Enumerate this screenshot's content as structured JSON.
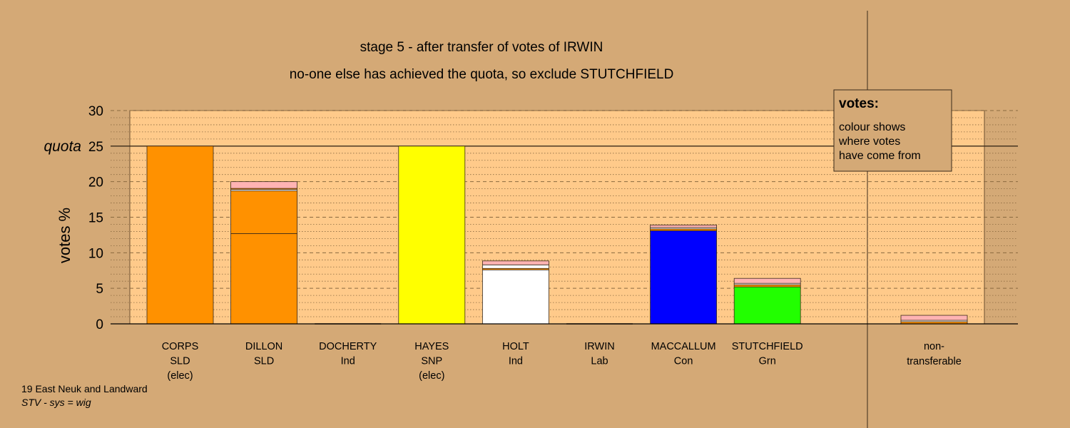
{
  "colors": {
    "background": "#d4a976",
    "plot_panel": "#ffca8a",
    "legend_box": "#d4a976",
    "gridline": "#8a6a40",
    "major_line": "#3a2a1a"
  },
  "footer": {
    "constituency": "19 East Neuk and Landward",
    "system": "STV - sys = wig"
  },
  "legend": {
    "heading": "votes:",
    "lines": [
      "colour shows",
      "where votes",
      "have come from"
    ]
  },
  "chart_data": {
    "type": "bar",
    "stacked": true,
    "title": "stage 5 - after transfer of votes of IRWIN",
    "subtitle": "no-one else has achieved the quota, so exclude STUTCHFIELD",
    "ylabel": "votes %",
    "xlabel": "",
    "ylim": [
      0,
      30
    ],
    "yticks": [
      0,
      5,
      10,
      15,
      20,
      25,
      30
    ],
    "quota": 25,
    "quota_label": "quota",
    "grid": true,
    "legend_position": "top-right",
    "candidates": [
      {
        "name": "CORPS",
        "party": "SLD",
        "status": "(elec)",
        "segments": [
          {
            "value": 25.0,
            "color": "#ff9100"
          }
        ]
      },
      {
        "name": "DILLON",
        "party": "SLD",
        "status": "",
        "segments": [
          {
            "value": 12.7,
            "color": "#ff9100"
          },
          {
            "value": 6.0,
            "color": "#ff9100"
          },
          {
            "value": 0.2,
            "color": "#ffffff"
          },
          {
            "value": 0.15,
            "color": "#ff9100"
          },
          {
            "value": 0.95,
            "color": "#ffb3b3"
          }
        ]
      },
      {
        "name": "DOCHERTY",
        "party": "Ind",
        "status": "",
        "segments": []
      },
      {
        "name": "HAYES",
        "party": "SNP",
        "status": "(elec)",
        "segments": [
          {
            "value": 25.0,
            "color": "#ffff00"
          }
        ]
      },
      {
        "name": "HOLT",
        "party": "Ind",
        "status": "",
        "segments": [
          {
            "value": 7.6,
            "color": "#ffffff"
          },
          {
            "value": 0.2,
            "color": "#ff9100"
          },
          {
            "value": 0.5,
            "color": "#ffffff"
          },
          {
            "value": 0.55,
            "color": "#ffb3b3"
          }
        ]
      },
      {
        "name": "IRWIN",
        "party": "Lab",
        "status": "",
        "segments": []
      },
      {
        "name": "MACCALLUM",
        "party": "Con",
        "status": "",
        "segments": [
          {
            "value": 13.1,
            "color": "#0000ff"
          },
          {
            "value": 0.25,
            "color": "#ff9100"
          },
          {
            "value": 0.2,
            "color": "#ffffff"
          },
          {
            "value": 0.35,
            "color": "#ffb3b3"
          }
        ]
      },
      {
        "name": "STUTCHFIELD",
        "party": "Grn",
        "status": "",
        "segments": [
          {
            "value": 5.2,
            "color": "#22ff00"
          },
          {
            "value": 0.3,
            "color": "#ff9100"
          },
          {
            "value": 0.2,
            "color": "#ffffff"
          },
          {
            "value": 0.7,
            "color": "#ffb3b3"
          }
        ]
      }
    ],
    "non_transferable": {
      "label_line1": "non-",
      "label_line2": "transferable",
      "segments": [
        {
          "value": 0.3,
          "color": "#ff9100"
        },
        {
          "value": 0.2,
          "color": "#ffffff"
        },
        {
          "value": 0.7,
          "color": "#ffb3b3"
        }
      ]
    }
  }
}
